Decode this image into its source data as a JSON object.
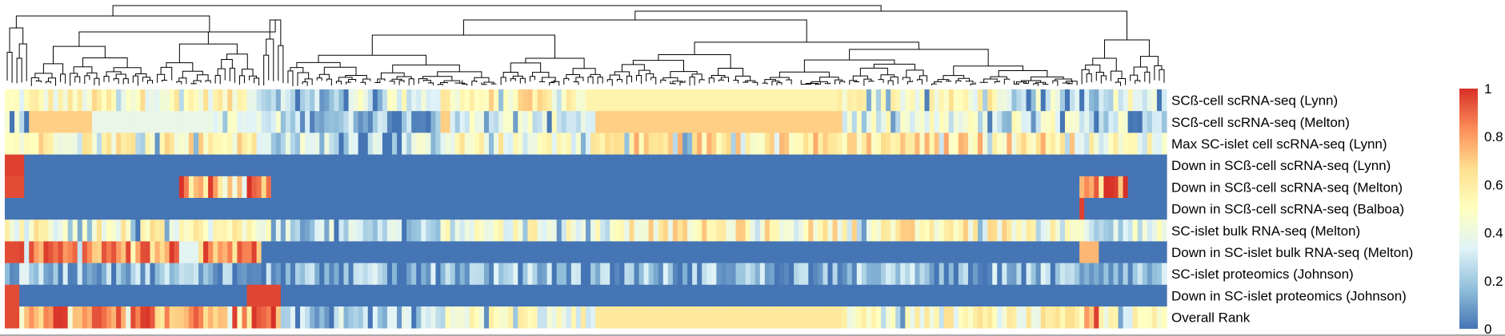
{
  "chart_data": {
    "type": "heatmap",
    "title": "",
    "xlabel": "",
    "ylabel": "",
    "dendrogram": "top (column clustering)",
    "legend_placement": "right",
    "colorscale": {
      "range": [
        0,
        1
      ],
      "tick_labels": [
        "0",
        "0.2",
        "0.4",
        "0.6",
        "0.8",
        "1"
      ],
      "tick_values": [
        0,
        0.2,
        0.4,
        0.6,
        0.8,
        1
      ],
      "colors": [
        "#4575b4",
        "#91bfdb",
        "#e0f3f8",
        "#ffffbf",
        "#fee090",
        "#fc8d59",
        "#d73027"
      ]
    },
    "column_count": 240,
    "rows": [
      {
        "label": "SCß-cell scRNA-seq (Lynn)",
        "segments": [
          [
            0,
            5,
            "mix",
            0.45
          ],
          [
            5,
            18,
            "mix",
            0.5
          ],
          [
            18,
            52,
            "mix",
            0.52
          ],
          [
            52,
            58,
            "mix",
            0.3
          ],
          [
            58,
            72,
            "mix",
            0.2
          ],
          [
            72,
            90,
            "mix",
            0.4
          ],
          [
            90,
            120,
            "mix",
            0.55
          ],
          [
            120,
            172,
            "const",
            0.56
          ],
          [
            172,
            205,
            "mix",
            0.5
          ],
          [
            205,
            225,
            "mix",
            0.3
          ],
          [
            225,
            240,
            "mix",
            0.45
          ]
        ]
      },
      {
        "label": "SCß-cell scRNA-seq (Melton)",
        "segments": [
          [
            0,
            5,
            "mix",
            0.3
          ],
          [
            5,
            18,
            "const",
            0.7
          ],
          [
            18,
            42,
            "const",
            0.38
          ],
          [
            42,
            52,
            "mix",
            0.35
          ],
          [
            52,
            58,
            "mix",
            0.3
          ],
          [
            58,
            90,
            "mix",
            0.2
          ],
          [
            90,
            92,
            "const",
            0.7
          ],
          [
            92,
            122,
            "mix",
            0.35
          ],
          [
            122,
            173,
            "const",
            0.7
          ],
          [
            173,
            222,
            "mix",
            0.38
          ],
          [
            222,
            230,
            "mix",
            0.2
          ],
          [
            230,
            240,
            "mix",
            0.35
          ]
        ]
      },
      {
        "label": "Max SC-islet cell scRNA-seq (Lynn)",
        "segments": [
          [
            0,
            5,
            "mix",
            0.5
          ],
          [
            5,
            52,
            "mix",
            0.57
          ],
          [
            52,
            60,
            "mix",
            0.3
          ],
          [
            60,
            90,
            "mix",
            0.3
          ],
          [
            90,
            122,
            "mix",
            0.5
          ],
          [
            122,
            222,
            "mix",
            0.62
          ],
          [
            222,
            240,
            "mix",
            0.45
          ]
        ]
      },
      {
        "label": "Down in SCß-cell scRNA-seq (Lynn)",
        "segments": [
          [
            0,
            4,
            "const",
            0.97
          ],
          [
            4,
            240,
            "const",
            0.0
          ]
        ]
      },
      {
        "label": "Down in SCß-cell scRNA-seq (Melton)",
        "segments": [
          [
            0,
            4,
            "const",
            0.95
          ],
          [
            4,
            36,
            "const",
            0.0
          ],
          [
            36,
            55,
            "mix",
            0.9
          ],
          [
            55,
            222,
            "const",
            0.0
          ],
          [
            222,
            232,
            "mix",
            0.88
          ],
          [
            232,
            240,
            "const",
            0.0
          ]
        ]
      },
      {
        "label": "Down in SCß-cell scRNA-seq (Balboa)",
        "segments": [
          [
            0,
            222,
            "const",
            0.0
          ],
          [
            222,
            223,
            "const",
            0.97
          ],
          [
            223,
            240,
            "const",
            0.0
          ]
        ]
      },
      {
        "label": "SC-islet bulk RNA-seq (Melton)",
        "segments": [
          [
            0,
            5,
            "mix",
            0.45
          ],
          [
            5,
            55,
            "mix",
            0.5
          ],
          [
            55,
            90,
            "mix",
            0.25
          ],
          [
            90,
            125,
            "mix",
            0.45
          ],
          [
            125,
            222,
            "mix",
            0.55
          ],
          [
            222,
            240,
            "mix",
            0.35
          ]
        ]
      },
      {
        "label": "Down in SC-islet bulk RNA-seq (Melton)",
        "segments": [
          [
            0,
            3,
            "const",
            0.95
          ],
          [
            3,
            36,
            "mix",
            0.82
          ],
          [
            36,
            40,
            "const",
            0.35
          ],
          [
            40,
            53,
            "mix",
            0.85
          ],
          [
            53,
            222,
            "const",
            0.0
          ],
          [
            222,
            226,
            "const",
            0.75
          ],
          [
            226,
            240,
            "const",
            0.0
          ]
        ]
      },
      {
        "label": "SC-islet proteomics (Johnson)",
        "segments": [
          [
            0,
            240,
            "mix",
            0.18
          ]
        ]
      },
      {
        "label": "Down in SC-islet proteomics (Johnson)",
        "segments": [
          [
            0,
            3,
            "const",
            0.95
          ],
          [
            3,
            50,
            "const",
            0.0
          ],
          [
            50,
            57,
            "const",
            0.96
          ],
          [
            57,
            240,
            "const",
            0.0
          ]
        ]
      },
      {
        "label": "Overall Rank",
        "segments": [
          [
            0,
            3,
            "const",
            0.95
          ],
          [
            3,
            4,
            "const",
            0.45
          ],
          [
            4,
            50,
            "mix",
            0.82
          ],
          [
            50,
            57,
            "mix",
            0.88
          ],
          [
            57,
            90,
            "mix",
            0.22
          ],
          [
            90,
            122,
            "mix",
            0.45
          ],
          [
            122,
            173,
            "const",
            0.62
          ],
          [
            173,
            222,
            "mix",
            0.5
          ],
          [
            222,
            226,
            "mix",
            0.8
          ],
          [
            226,
            240,
            "mix",
            0.45
          ]
        ]
      }
    ]
  }
}
